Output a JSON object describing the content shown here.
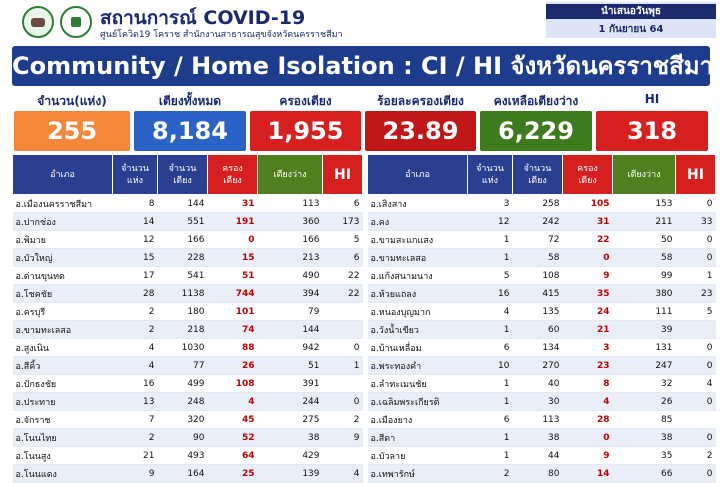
{
  "header": {
    "title": "สถานการณ์ COVID-19",
    "subtitle": "ศูนย์โควิด19 โคราช สำนักงานสาธารณสุขจังหวัดนครราชสีมา",
    "date_label": "นำเสนอวันพุธ",
    "date_value": "1 กันยายน 64"
  },
  "banner": "Community / Home Isolation : CI / HI จังหวัดนครราชสีมา",
  "stats": [
    {
      "label": "จำนวน(แห่ง)",
      "value": "255",
      "color": "#f4873a"
    },
    {
      "label": "เตียงทั้งหมด",
      "value": "8,184",
      "color": "#2a62c6"
    },
    {
      "label": "ครองเตียง",
      "value": "1,955",
      "color": "#d62020"
    },
    {
      "label": "ร้อยละครองเตียง",
      "value": "23.89",
      "color": "#c01818"
    },
    {
      "label": "คงเหลือเตียงว่าง",
      "value": "6,229",
      "color": "#3e7a1e"
    },
    {
      "label": "HI",
      "value": "318",
      "color": "#d62020"
    }
  ],
  "table_headers": {
    "district": "อำเภอ",
    "count": [
      "จำนวน",
      "แห่ง"
    ],
    "beds": [
      "จำนวน",
      "เตียง"
    ],
    "occupied": [
      "ครอง",
      "เตียง"
    ],
    "free": "เตียงว่าง",
    "hi": "HI"
  },
  "left_rows": [
    [
      "อ.เมืองนครราชสีมา",
      "8",
      "144",
      "31",
      "113",
      "6"
    ],
    [
      "อ.ปากช่อง",
      "14",
      "551",
      "191",
      "360",
      "173"
    ],
    [
      "อ.พิมาย",
      "12",
      "166",
      "0",
      "166",
      "5"
    ],
    [
      "อ.บัวใหญ่",
      "15",
      "228",
      "15",
      "213",
      "6"
    ],
    [
      "อ.ด่านขุนทด",
      "17",
      "541",
      "51",
      "490",
      "22"
    ],
    [
      "อ.โชคชัย",
      "28",
      "1138",
      "744",
      "394",
      "22"
    ],
    [
      "อ.ครบุรี",
      "2",
      "180",
      "101",
      "79",
      ""
    ],
    [
      "อ.ขามทะเลสอ",
      "2",
      "218",
      "74",
      "144",
      ""
    ],
    [
      "อ.สูงเนิน",
      "4",
      "1030",
      "88",
      "942",
      "0"
    ],
    [
      "อ.สีคิ้ว",
      "4",
      "77",
      "26",
      "51",
      "1"
    ],
    [
      "อ.ปักธงชัย",
      "16",
      "499",
      "108",
      "391",
      ""
    ],
    [
      "อ.ประทาย",
      "13",
      "248",
      "4",
      "244",
      "0"
    ],
    [
      "อ.จักราช",
      "7",
      "320",
      "45",
      "275",
      "2"
    ],
    [
      "อ.โนนไทย",
      "2",
      "90",
      "52",
      "38",
      "9"
    ],
    [
      "อ.โนนสูง",
      "21",
      "493",
      "64",
      "429",
      ""
    ],
    [
      "อ.โนนแดง",
      "9",
      "164",
      "25",
      "139",
      "4"
    ]
  ],
  "right_rows": [
    [
      "อ.เสิงสาง",
      "3",
      "258",
      "105",
      "153",
      "0"
    ],
    [
      "อ.คง",
      "12",
      "242",
      "31",
      "211",
      "33"
    ],
    [
      "อ.ขามสะแกแสง",
      "1",
      "72",
      "22",
      "50",
      "0"
    ],
    [
      "อ.ขามทะเลสอ",
      "1",
      "58",
      "0",
      "58",
      "0"
    ],
    [
      "อ.แก้งสนามนาง",
      "5",
      "108",
      "9",
      "99",
      "1"
    ],
    [
      "อ.ห้วยแถลง",
      "16",
      "415",
      "35",
      "380",
      "23"
    ],
    [
      "อ.หนองบุญมาก",
      "4",
      "135",
      "24",
      "111",
      "5"
    ],
    [
      "อ.วังน้ำเขียว",
      "1",
      "60",
      "21",
      "39",
      ""
    ],
    [
      "อ.บ้านเหลื่อม",
      "6",
      "134",
      "3",
      "131",
      "0"
    ],
    [
      "อ.พระทองคำ",
      "10",
      "270",
      "23",
      "247",
      "0"
    ],
    [
      "อ.ลำทะเมนชัย",
      "1",
      "40",
      "8",
      "32",
      "4"
    ],
    [
      "อ.เฉลิมพระเกียรติ",
      "1",
      "30",
      "4",
      "26",
      "0"
    ],
    [
      "อ.เมืองยาง",
      "6",
      "113",
      "28",
      "85",
      ""
    ],
    [
      "อ.สีดา",
      "1",
      "38",
      "0",
      "38",
      "0"
    ],
    [
      "อ.บัวลาย",
      "1",
      "44",
      "9",
      "35",
      "2"
    ],
    [
      "อ.เทพารักษ์",
      "2",
      "80",
      "14",
      "66",
      "0"
    ]
  ]
}
